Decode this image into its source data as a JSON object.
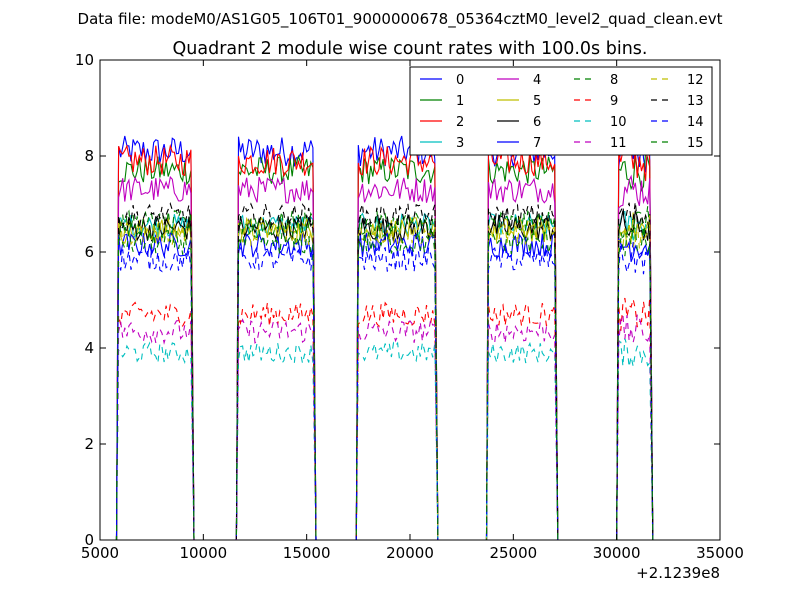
{
  "chart_data": {
    "type": "line",
    "suptitle": "Data file: modeM0/AS1G05_106T01_9000000678_05364cztM0_level2_quad_clean.evt",
    "title": "Quadrant 2 module wise count rates with 100.0s bins.",
    "xlabel": "",
    "ylabel": "",
    "x_offset_label": "+2.1239e8",
    "xlim": [
      5000,
      35000
    ],
    "ylim": [
      0,
      10
    ],
    "x_ticks": [
      5000,
      10000,
      15000,
      20000,
      25000,
      30000,
      35000
    ],
    "x_tick_labels": [
      "5000",
      "10000",
      "15000",
      "20000",
      "25000",
      "30000",
      "35000"
    ],
    "y_ticks": [
      0,
      2,
      4,
      6,
      8,
      10
    ],
    "y_tick_labels": [
      "0",
      "2",
      "4",
      "6",
      "8",
      "10"
    ],
    "grid": false,
    "legend_position": "top-right",
    "legend_columns": 4,
    "bin_width_s": 100,
    "segments": [
      {
        "start": 5900,
        "end": 9400
      },
      {
        "start": 11700,
        "end": 15300
      },
      {
        "start": 17500,
        "end": 21200
      },
      {
        "start": 23800,
        "end": 27000
      },
      {
        "start": 30100,
        "end": 31600
      }
    ],
    "gaps_zero": [
      {
        "start": 9600,
        "end": 11500
      },
      {
        "start": 15500,
        "end": 17300
      },
      {
        "start": 21400,
        "end": 23600
      },
      {
        "start": 27200,
        "end": 30000
      }
    ],
    "series": [
      {
        "name": "0",
        "color": "#0000ff",
        "dash": "solid",
        "mean": 8.1,
        "noise": 0.32
      },
      {
        "name": "1",
        "color": "#008000",
        "dash": "solid",
        "mean": 7.7,
        "noise": 0.3
      },
      {
        "name": "2",
        "color": "#ff0000",
        "dash": "solid",
        "mean": 7.9,
        "noise": 0.32
      },
      {
        "name": "3",
        "color": "#00bfbf",
        "dash": "solid",
        "mean": 6.55,
        "noise": 0.25
      },
      {
        "name": "4",
        "color": "#bf00bf",
        "dash": "solid",
        "mean": 7.3,
        "noise": 0.28
      },
      {
        "name": "5",
        "color": "#bfbf00",
        "dash": "solid",
        "mean": 6.45,
        "noise": 0.28
      },
      {
        "name": "6",
        "color": "#000000",
        "dash": "solid",
        "mean": 6.5,
        "noise": 0.28
      },
      {
        "name": "7",
        "color": "#0000ff",
        "dash": "solid",
        "mean": 6.15,
        "noise": 0.26
      },
      {
        "name": "8",
        "color": "#008000",
        "dash": "dashed",
        "mean": 6.6,
        "noise": 0.26
      },
      {
        "name": "9",
        "color": "#ff0000",
        "dash": "dashed",
        "mean": 4.7,
        "noise": 0.25
      },
      {
        "name": "10",
        "color": "#00bfbf",
        "dash": "dashed",
        "mean": 3.9,
        "noise": 0.22
      },
      {
        "name": "11",
        "color": "#bf00bf",
        "dash": "dashed",
        "mean": 4.35,
        "noise": 0.25
      },
      {
        "name": "12",
        "color": "#bfbf00",
        "dash": "dashed",
        "mean": 6.4,
        "noise": 0.26
      },
      {
        "name": "13",
        "color": "#000000",
        "dash": "dashed",
        "mean": 6.75,
        "noise": 0.26
      },
      {
        "name": "14",
        "color": "#0000ff",
        "dash": "dashed",
        "mean": 5.85,
        "noise": 0.26
      },
      {
        "name": "15",
        "color": "#008000",
        "dash": "dashed",
        "mean": 6.2,
        "noise": 0.26
      }
    ]
  }
}
